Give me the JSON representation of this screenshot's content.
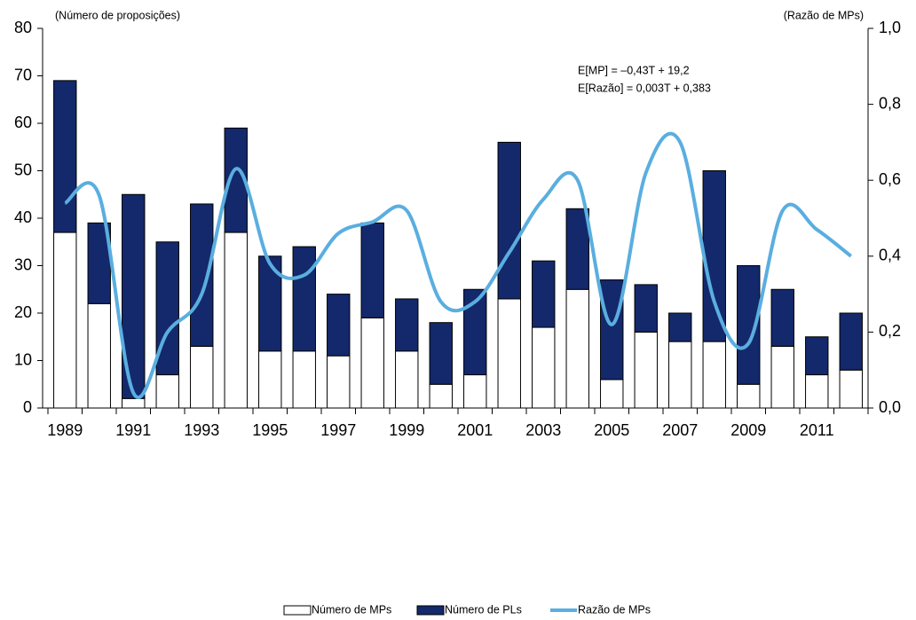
{
  "chart_data": {
    "type": "bar",
    "stacked": true,
    "y_label": "(Número de proposições)",
    "y2_label": "(Razão de MPs)",
    "annotations": [
      "E[MP] = –0,43T + 19,2",
      "E[Razão] = 0,003T + 0,383"
    ],
    "categories": [
      "1989",
      null,
      "1991",
      null,
      "1993",
      null,
      "1995",
      null,
      "1997",
      null,
      "1999",
      null,
      "2001",
      null,
      "2003",
      null,
      "2005",
      null,
      "2007",
      null,
      "2009",
      null,
      "2011",
      null
    ],
    "series": [
      {
        "name": "Número de MPs",
        "color": "#ffffff",
        "values": [
          37,
          22,
          2,
          7,
          13,
          37,
          12,
          12,
          11,
          19,
          12,
          5,
          7,
          23,
          17,
          25,
          6,
          16,
          14,
          14,
          5,
          13,
          7,
          8
        ]
      },
      {
        "name": "Número de PLs",
        "color": "#13296b",
        "values": [
          32,
          17,
          43,
          28,
          30,
          22,
          20,
          22,
          13,
          20,
          11,
          13,
          18,
          33,
          14,
          17,
          21,
          10,
          6,
          36,
          25,
          12,
          8,
          12
        ]
      },
      {
        "name": "Razão de MPs",
        "color": "#5aaee0",
        "type": "line",
        "axis": "y2",
        "values": [
          0.54,
          0.56,
          0.04,
          0.2,
          0.3,
          0.63,
          0.38,
          0.35,
          0.46,
          0.49,
          0.52,
          0.28,
          0.28,
          0.41,
          0.55,
          0.6,
          0.22,
          0.62,
          0.7,
          0.28,
          0.17,
          0.52,
          0.47,
          0.4
        ]
      }
    ],
    "ylim": [
      0,
      80
    ],
    "yticks": [
      0,
      10,
      20,
      30,
      40,
      50,
      60,
      70,
      80
    ],
    "y2lim": [
      0,
      1
    ],
    "y2ticks": [
      {
        "value": 0,
        "label": "0,0"
      },
      {
        "value": 0.2,
        "label": "0,2"
      },
      {
        "value": 0.4,
        "label": "0,4"
      },
      {
        "value": 0.6,
        "label": "0,6"
      },
      {
        "value": 0.8,
        "label": "0,8"
      },
      {
        "value": 1,
        "label": "1,0"
      }
    ],
    "grid": false
  }
}
